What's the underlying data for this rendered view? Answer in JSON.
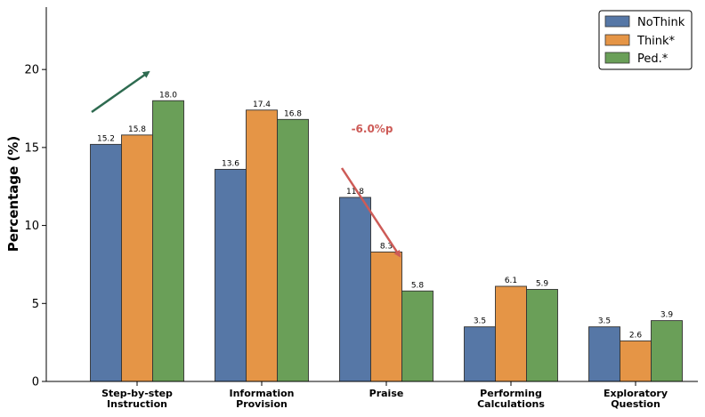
{
  "chart_data": {
    "type": "bar",
    "title": "",
    "xlabel": "",
    "ylabel": "Percentage (%)",
    "ylim": [
      0,
      24
    ],
    "yticks": [
      0,
      5,
      10,
      15,
      20
    ],
    "grid": false,
    "legend_position": "top-right",
    "categories": [
      [
        "Step-by-step",
        "Instruction"
      ],
      [
        "Information",
        "Provision"
      ],
      [
        "Praise"
      ],
      [
        "Performing",
        "Calculations"
      ],
      [
        "Exploratory",
        "Question"
      ]
    ],
    "series": [
      {
        "name": "NoThink",
        "color": "#5677a6",
        "values": [
          15.2,
          13.6,
          11.8,
          3.5,
          3.5
        ]
      },
      {
        "name": "Think*",
        "color": "#e59546",
        "values": [
          15.8,
          17.4,
          8.3,
          6.1,
          2.6
        ]
      },
      {
        "name": "Ped.*",
        "color": "#6a9f58",
        "values": [
          18.0,
          16.8,
          5.8,
          5.9,
          3.9
        ]
      }
    ],
    "annotations": [
      {
        "text": "",
        "type": "arrow-up",
        "color": "#2e6b50",
        "category_index": 0
      },
      {
        "text": "-6.0%p",
        "type": "arrow-down",
        "color": "#cd5b57",
        "category_index": 2
      }
    ]
  }
}
